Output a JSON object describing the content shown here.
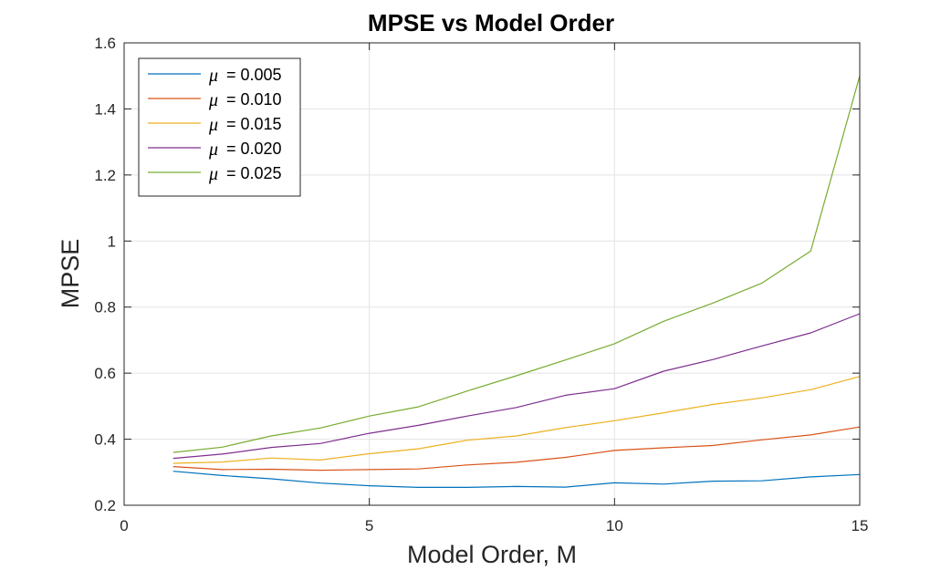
{
  "chart_data": {
    "type": "line",
    "title": "MPSE vs Model Order",
    "xlabel": "Model Order, M",
    "ylabel": "MPSE",
    "xlim": [
      0,
      15
    ],
    "ylim": [
      0.2,
      1.6
    ],
    "xticks": [
      0,
      5,
      10,
      15
    ],
    "xtick_labels": [
      "0",
      "5",
      "10",
      "15"
    ],
    "yticks": [
      0.2,
      0.4,
      0.6,
      0.8,
      1.0,
      1.2,
      1.4,
      1.6
    ],
    "ytick_labels": [
      "0.2",
      "0.4",
      "0.6",
      "0.8",
      "1",
      "1.2",
      "1.4",
      "1.6"
    ],
    "grid": true,
    "legend_position": "top-left",
    "x": [
      1,
      2,
      3,
      4,
      5,
      6,
      7,
      8,
      9,
      10,
      11,
      12,
      13,
      14,
      15
    ],
    "series": [
      {
        "name": "μ = 0.005",
        "legend_symbol": "μ",
        "legend_value": "= 0.005",
        "color": "#0072BD",
        "values": [
          0.303,
          0.29,
          0.28,
          0.267,
          0.259,
          0.254,
          0.254,
          0.257,
          0.255,
          0.268,
          0.264,
          0.273,
          0.274,
          0.286,
          0.293
        ]
      },
      {
        "name": "μ = 0.010",
        "legend_symbol": "μ",
        "legend_value": "= 0.010",
        "color": "#D95319",
        "values": [
          0.317,
          0.308,
          0.309,
          0.306,
          0.308,
          0.31,
          0.322,
          0.33,
          0.345,
          0.366,
          0.374,
          0.381,
          0.398,
          0.413,
          0.437
        ]
      },
      {
        "name": "μ = 0.015",
        "legend_symbol": "μ",
        "legend_value": "= 0.015",
        "color": "#EDB120",
        "values": [
          0.327,
          0.331,
          0.343,
          0.337,
          0.356,
          0.371,
          0.397,
          0.41,
          0.435,
          0.456,
          0.48,
          0.505,
          0.525,
          0.55,
          0.59
        ]
      },
      {
        "name": "μ = 0.020",
        "legend_symbol": "μ",
        "legend_value": "= 0.020",
        "color": "#7E2F8E",
        "values": [
          0.342,
          0.355,
          0.375,
          0.387,
          0.418,
          0.442,
          0.47,
          0.496,
          0.533,
          0.553,
          0.606,
          0.641,
          0.682,
          0.722,
          0.78
        ]
      },
      {
        "name": "μ = 0.025",
        "legend_symbol": "μ",
        "legend_value": "= 0.025",
        "color": "#77AC30",
        "values": [
          0.36,
          0.376,
          0.41,
          0.434,
          0.47,
          0.498,
          0.546,
          0.592,
          0.64,
          0.689,
          0.757,
          0.812,
          0.872,
          0.97,
          1.5
        ]
      }
    ]
  }
}
